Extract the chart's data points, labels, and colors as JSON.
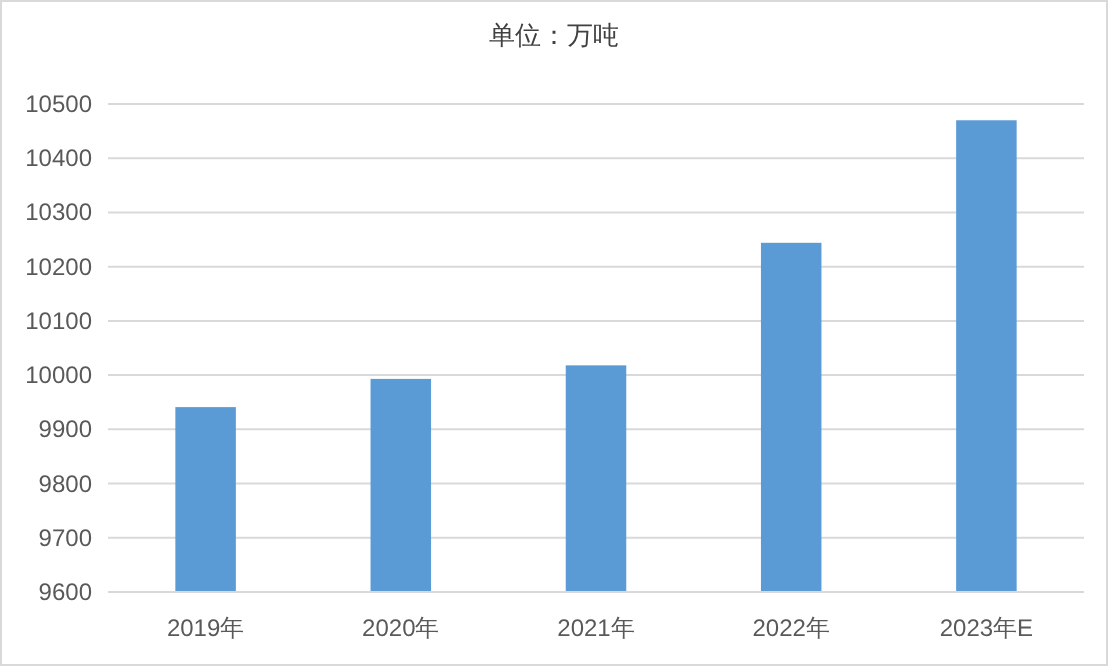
{
  "chart_data": {
    "type": "bar",
    "title": "单位：万吨",
    "categories": [
      "2019年",
      "2020年",
      "2021年",
      "2022年",
      "2023年E"
    ],
    "values": [
      9941,
      9993,
      10018,
      10244,
      10470
    ],
    "color": "#5b9bd5",
    "ylim": [
      9600,
      10500
    ],
    "yticks": [
      9600,
      9700,
      9800,
      9900,
      10000,
      10100,
      10200,
      10300,
      10400,
      10500
    ],
    "grid": "y"
  }
}
